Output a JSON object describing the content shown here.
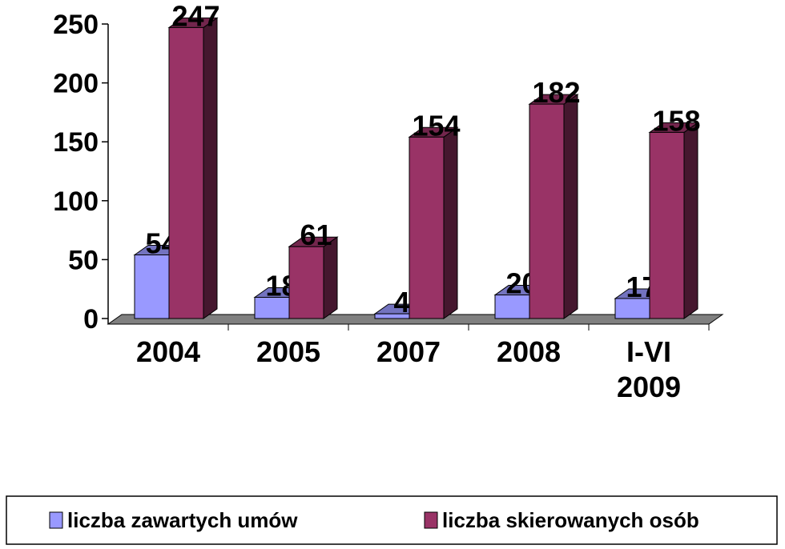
{
  "chart_data": {
    "type": "bar3d",
    "categories": [
      "2004",
      "2005",
      "2007",
      "2008",
      "I-VI 2009"
    ],
    "series": [
      {
        "name": "liczba zawartych umów",
        "color": "#9999ff",
        "values": [
          54,
          18,
          4,
          20,
          17
        ]
      },
      {
        "name": "liczba skierowanych osób",
        "color": "#993366",
        "values": [
          247,
          61,
          154,
          182,
          158
        ]
      }
    ],
    "ylim": [
      0,
      250
    ],
    "yticks": [
      0,
      50,
      100,
      150,
      200,
      250
    ],
    "legend": "bottom",
    "data_labels": true
  }
}
